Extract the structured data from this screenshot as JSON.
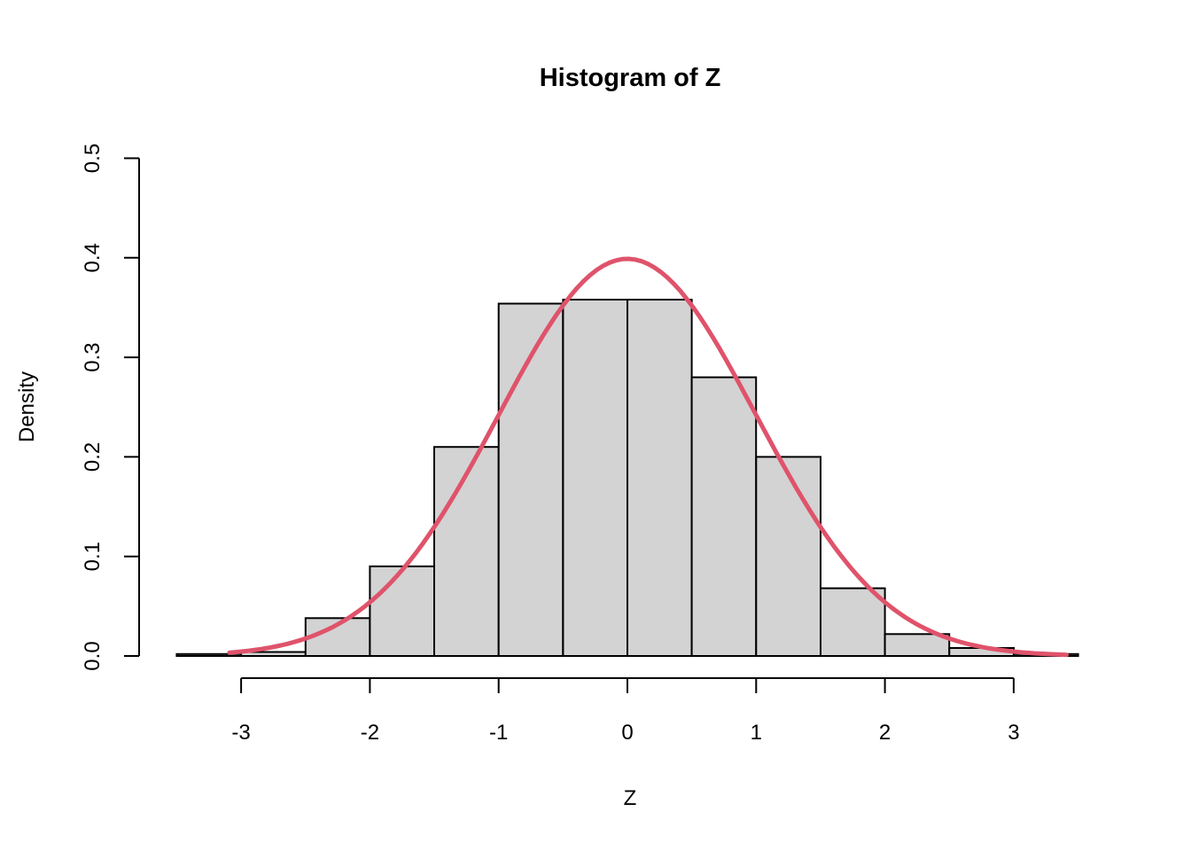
{
  "chart_data": {
    "type": "bar",
    "subtype": "histogram-with-density-curve",
    "title": "Histogram of Z",
    "xlabel": "Z",
    "ylabel": "Density",
    "xlim": [
      -3.5,
      3.5
    ],
    "ylim": [
      0.0,
      0.5
    ],
    "grid": "off",
    "legend": "none",
    "x_ticks": {
      "values": [
        -3,
        -2,
        -1,
        0,
        1,
        2,
        3
      ],
      "labels": [
        "-3",
        "-2",
        "-1",
        "0",
        "1",
        "2",
        "3"
      ]
    },
    "y_ticks": {
      "values": [
        0.0,
        0.1,
        0.2,
        0.3,
        0.4,
        0.5
      ],
      "labels": [
        "0.0",
        "0.1",
        "0.2",
        "0.3",
        "0.4",
        "0.5"
      ]
    },
    "bins": {
      "edges": [
        -3.5,
        -3.0,
        -2.5,
        -2.0,
        -1.5,
        -1.0,
        -0.5,
        0.0,
        0.5,
        1.0,
        1.5,
        2.0,
        2.5,
        3.0,
        3.5
      ],
      "densities": [
        0.002,
        0.004,
        0.038,
        0.09,
        0.21,
        0.354,
        0.358,
        0.358,
        0.28,
        0.2,
        0.068,
        0.022,
        0.008,
        0.002
      ]
    },
    "curve": {
      "name": "standard-normal-density",
      "mean": 0,
      "sd": 1,
      "x_from": -3.09,
      "x_to": 3.41,
      "peak_density": 0.399
    },
    "colors": {
      "bar_fill": "#d3d3d3",
      "bar_stroke": "#000000",
      "curve_stroke": "#df536b",
      "axis": "#000000",
      "background": "#ffffff"
    }
  }
}
